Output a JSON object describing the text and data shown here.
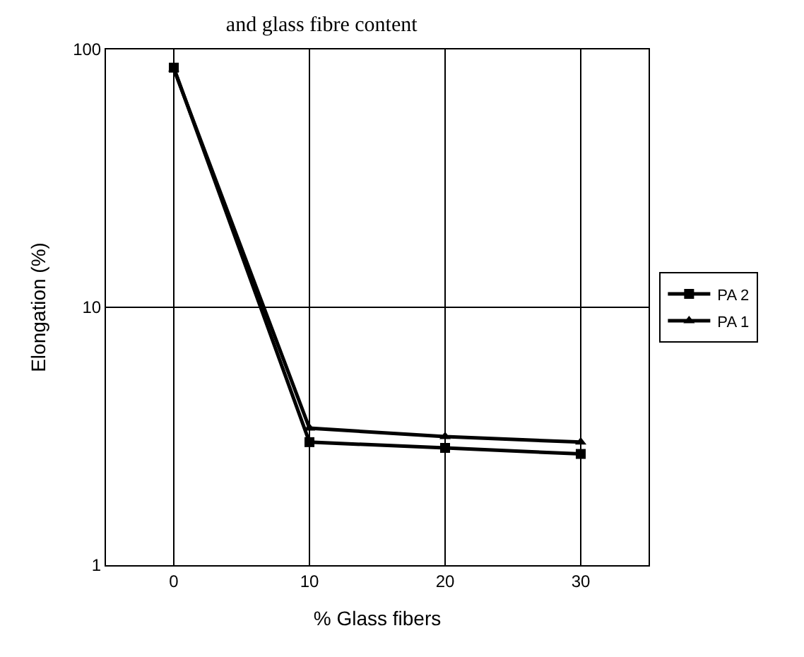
{
  "chart_data": {
    "type": "line",
    "title": "and glass fibre content",
    "xlabel": "% Glass fibers",
    "ylabel": "Elongation (%)",
    "categories": [
      "0",
      "10",
      "20",
      "30"
    ],
    "series": [
      {
        "name": "PA 2",
        "color": "#000000",
        "marker": "square",
        "values": [
          85,
          3.0,
          2.85,
          2.7
        ]
      },
      {
        "name": "PA 1",
        "color": "#000000",
        "marker": "triangle",
        "values": [
          84,
          3.4,
          3.15,
          3.0
        ]
      }
    ],
    "log": "y",
    "ylim": [
      1,
      100
    ],
    "yticks": [
      1,
      10,
      100
    ],
    "grid": true,
    "legend": "right",
    "line_style": "solid"
  }
}
